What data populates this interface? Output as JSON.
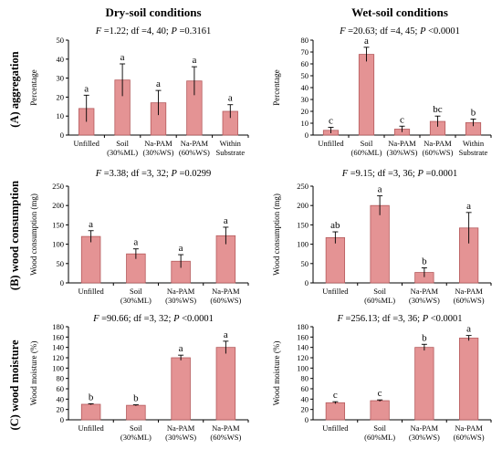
{
  "column_titles": [
    "Dry-soil conditions",
    "Wet-soil conditions"
  ],
  "row_labels": [
    "(A) aggregation",
    "(B) wood consumption",
    "(C) wood moisture"
  ],
  "chart_data": [
    {
      "type": "bar",
      "row": 0,
      "col": 0,
      "stats_parts": [
        "F",
        " =1.22; df =4, 40; ",
        "P",
        " =0.3161"
      ],
      "ylabel": "Percentage",
      "ylim": [
        0,
        50
      ],
      "yticks": [
        0,
        10,
        20,
        30,
        40,
        50
      ],
      "categories": [
        [
          "Unfilled"
        ],
        [
          "Soil",
          "(30%ML)"
        ],
        [
          "Na-PAM",
          "(30%WS)"
        ],
        [
          "Na-PAM",
          "(60%WS)"
        ],
        [
          "Within",
          "Substrate"
        ]
      ],
      "values": [
        14,
        29,
        17,
        28.5,
        12.5
      ],
      "errors": [
        7,
        8.5,
        6.5,
        7.5,
        3.5
      ],
      "letters": [
        "a",
        "a",
        "a",
        "a",
        "a"
      ]
    },
    {
      "type": "bar",
      "row": 0,
      "col": 1,
      "stats_parts": [
        "F",
        " =20.63; df =4, 45; ",
        "P",
        " <0.0001"
      ],
      "ylabel": "Percentage",
      "ylim": [
        0,
        80
      ],
      "yticks": [
        0,
        10,
        20,
        30,
        40,
        50,
        60,
        70,
        80
      ],
      "categories": [
        [
          "Unfilled"
        ],
        [
          "Soil",
          "(60%ML)"
        ],
        [
          "Na-PAM",
          "(30%WS)"
        ],
        [
          "Na-PAM",
          "(60%WS)"
        ],
        [
          "Within",
          "Substrate"
        ]
      ],
      "values": [
        4,
        68,
        5,
        11.5,
        10.5
      ],
      "errors": [
        2.5,
        6,
        2.5,
        4.5,
        3
      ],
      "letters": [
        "c",
        "a",
        "c",
        "bc",
        "b"
      ]
    },
    {
      "type": "bar",
      "row": 1,
      "col": 0,
      "stats_parts": [
        "F",
        " =3.38; df =3, 32; ",
        "P",
        " =0.0299"
      ],
      "ylabel": "Wood consumption (mg)",
      "ylim": [
        0,
        250
      ],
      "yticks": [
        0,
        50,
        100,
        150,
        200,
        250
      ],
      "categories": [
        [
          "Unfilled"
        ],
        [
          "Soil",
          "(30%ML)"
        ],
        [
          "Na-PAM",
          "(30%WS)"
        ],
        [
          "Na-PAM",
          "(60%WS)"
        ]
      ],
      "values": [
        120,
        75,
        56,
        122
      ],
      "errors": [
        15,
        13,
        17,
        22
      ],
      "letters": [
        "a",
        "a",
        "a",
        "a"
      ]
    },
    {
      "type": "bar",
      "row": 1,
      "col": 1,
      "stats_parts": [
        "F",
        " =9.15; df =3, 36; ",
        "P",
        " =0.0001"
      ],
      "ylabel": "Wood consumption (mg)",
      "ylim": [
        0,
        250
      ],
      "yticks": [
        0,
        50,
        100,
        150,
        200,
        250
      ],
      "categories": [
        [
          "Unfilled"
        ],
        [
          "Soil",
          "(60%ML)"
        ],
        [
          "Na-PAM",
          "(30%WS)"
        ],
        [
          "Na-PAM",
          "(60%WS)"
        ]
      ],
      "values": [
        117,
        200,
        27,
        142
      ],
      "errors": [
        15,
        25,
        12,
        40
      ],
      "letters": [
        "ab",
        "a",
        "b",
        "a"
      ]
    },
    {
      "type": "bar",
      "row": 2,
      "col": 0,
      "stats_parts": [
        "F",
        " =90.66; df =3, 32; ",
        "P",
        " <0.0001"
      ],
      "ylabel": "Wood moisture (%)",
      "ylim": [
        0,
        180
      ],
      "yticks": [
        0,
        20,
        40,
        60,
        80,
        100,
        120,
        140,
        160,
        180
      ],
      "categories": [
        [
          "Unfilled"
        ],
        [
          "Soil",
          "(30%ML)"
        ],
        [
          "Na-PAM",
          "(30%WS)"
        ],
        [
          "Na-PAM",
          "(60%WS)"
        ]
      ],
      "values": [
        30,
        28,
        120,
        140
      ],
      "errors": [
        1,
        1,
        5,
        12
      ],
      "letters": [
        "b",
        "b",
        "a",
        "a"
      ]
    },
    {
      "type": "bar",
      "row": 2,
      "col": 1,
      "stats_parts": [
        "F",
        " =256.13; df =3, 36; ",
        "P",
        " <0.0001"
      ],
      "ylabel": "Wood moisture (%)",
      "ylim": [
        0,
        180
      ],
      "yticks": [
        0,
        20,
        40,
        60,
        80,
        100,
        120,
        140,
        160,
        180
      ],
      "categories": [
        [
          "Unfilled"
        ],
        [
          "Soil",
          "(60%ML)"
        ],
        [
          "Na-PAM",
          "(30%WS)"
        ],
        [
          "Na-PAM",
          "(60%WS)"
        ]
      ],
      "values": [
        33,
        37,
        140,
        158
      ],
      "errors": [
        2,
        1.5,
        6,
        5
      ],
      "letters": [
        "c",
        "c",
        "b",
        "a"
      ]
    }
  ]
}
